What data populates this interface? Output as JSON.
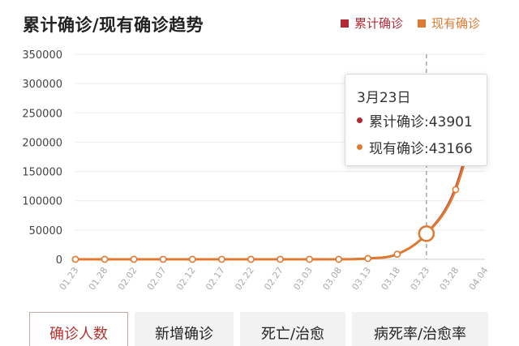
{
  "title": "累计确诊/现有确诊趋势",
  "legend": [
    {
      "label": "累计确诊",
      "color": "#b22a36"
    },
    {
      "label": "现有确诊",
      "color": "#de7a32"
    }
  ],
  "tooltip": {
    "date": "3月23日",
    "rows": [
      {
        "label": "累计确诊:43901",
        "color": "#b22a36"
      },
      {
        "label": "现有确诊:43166",
        "color": "#de7a32"
      }
    ]
  },
  "tabs": [
    {
      "label": "确诊人数",
      "active": true
    },
    {
      "label": "新增确诊",
      "active": false
    },
    {
      "label": "死亡/治愈",
      "active": false
    },
    {
      "label": "病死率/治愈率",
      "active": false
    }
  ],
  "chart_data": {
    "type": "line",
    "categories": [
      "01.23",
      "01.28",
      "02.02",
      "02.07",
      "02.12",
      "02.17",
      "02.22",
      "02.27",
      "03.03",
      "03.08",
      "03.13",
      "03.18",
      "03.23",
      "03.28",
      "04.04"
    ],
    "yticks": [
      "0",
      "50000",
      "100000",
      "150000",
      "200000",
      "250000",
      "300000",
      "350000"
    ],
    "ylim": [
      0,
      350000
    ],
    "grid": true,
    "highlight": {
      "category": "03.23",
      "value": 43901
    },
    "series": [
      {
        "name": "累计确诊",
        "color": "#b22a36",
        "values": [
          0,
          0,
          0,
          0,
          0,
          0,
          0,
          0,
          0,
          0,
          1500,
          9000,
          43901,
          123000,
          311000
        ]
      },
      {
        "name": "现有确诊",
        "color": "#de7a32",
        "values": [
          0,
          0,
          0,
          0,
          0,
          0,
          0,
          0,
          0,
          0,
          1400,
          8700,
          43166,
          119000,
          298000
        ]
      }
    ]
  }
}
